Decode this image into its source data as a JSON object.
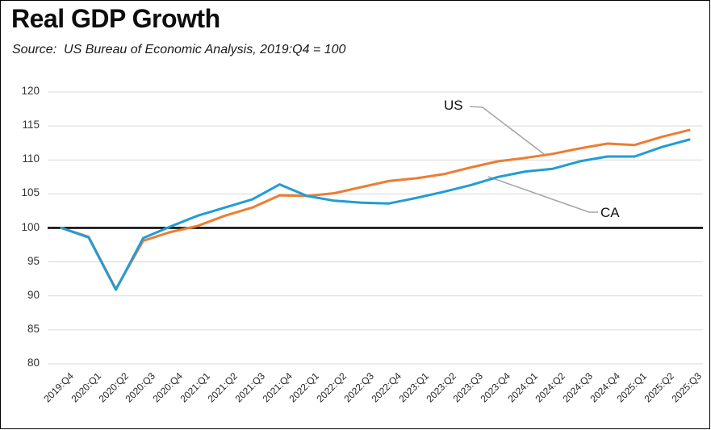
{
  "chart": {
    "title": "Real GDP Growth",
    "subtitle": "Source:  US Bureau of Economic Analysis, 2019:Q4 = 100"
  },
  "chart_data": {
    "type": "line",
    "title": "Real GDP Growth",
    "subtitle": "Source:  US Bureau of Economic Analysis, 2019:Q4 = 100",
    "xlabel": "",
    "ylabel": "",
    "ylim": [
      80,
      120
    ],
    "yticks": [
      80,
      85,
      90,
      95,
      100,
      105,
      110,
      115,
      120
    ],
    "baseline": 100,
    "grid": true,
    "legend_position": "inline-annotations",
    "categories": [
      "2019:Q4",
      "2020:Q1",
      "2020:Q2",
      "2020:Q3",
      "2020:Q4",
      "2021:Q1",
      "2021:Q2",
      "2021:Q3",
      "2021:Q4",
      "2022:Q1",
      "2022:Q2",
      "2022:Q3",
      "2022:Q4",
      "2023:Q1",
      "2023:Q2",
      "2023:Q3",
      "2023:Q4",
      "2024:Q1",
      "2024:Q2",
      "2024:Q3",
      "2024:Q4",
      "2025:Q1",
      "2025:Q2",
      "2025:Q3"
    ],
    "series": [
      {
        "name": "US",
        "color": "#ED7D31",
        "values": [
          100.0,
          98.7,
          91.0,
          98.1,
          99.4,
          100.3,
          101.8,
          103.0,
          104.8,
          104.7,
          105.1,
          106.0,
          106.9,
          107.3,
          107.9,
          108.9,
          109.8,
          110.3,
          110.9,
          111.7,
          112.4,
          112.2,
          113.4,
          114.4
        ]
      },
      {
        "name": "CA",
        "color": "#229CD6",
        "values": [
          100.0,
          98.6,
          90.9,
          98.5,
          100.2,
          101.8,
          103.0,
          104.2,
          106.4,
          104.7,
          104.0,
          103.7,
          103.6,
          104.4,
          105.3,
          106.3,
          107.5,
          108.3,
          108.7,
          109.8,
          110.5,
          110.5,
          111.9,
          113.0
        ]
      }
    ],
    "annotations": [
      {
        "label": "US",
        "series": "US"
      },
      {
        "label": "CA",
        "series": "CA"
      }
    ],
    "colors": {
      "gridline": "#D9D9D9",
      "baseline": "#000000",
      "leader_line": "#A6A6A6"
    }
  }
}
